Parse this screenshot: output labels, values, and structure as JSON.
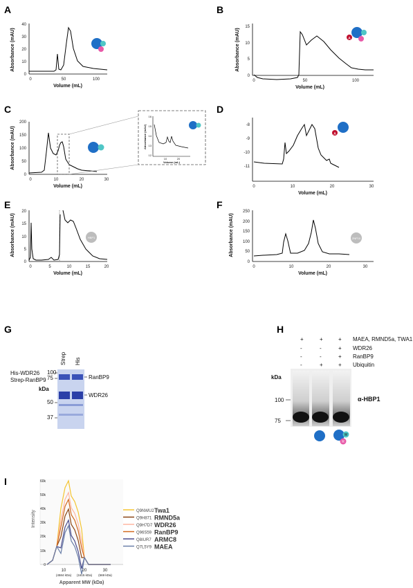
{
  "panels": {
    "A": {
      "letter": "A",
      "xlabel": "Volume (mL)",
      "ylabel": "Absorbance (mAU)",
      "yticks": [
        "0",
        "10",
        "20",
        "30",
        "40"
      ],
      "xticks": [
        "0",
        "50",
        "100"
      ],
      "icons": [
        "Core",
        "W",
        "R"
      ]
    },
    "B": {
      "letter": "B",
      "xlabel": "Volume (mL)",
      "ylabel": "Absorbance (mAU)",
      "yticks": [
        "0",
        "5",
        "10",
        "15"
      ],
      "xticks": [
        "0",
        "50",
        "100"
      ],
      "icons": [
        "A",
        "Core",
        "W",
        "R"
      ]
    },
    "C": {
      "letter": "C",
      "xlabel": "Volume (mL)",
      "ylabel": "Absorbance (mAU)",
      "yticks": [
        "0",
        "50",
        "100",
        "150",
        "200"
      ],
      "xticks": [
        "0",
        "10",
        "20",
        "30"
      ],
      "icons": [
        "Core",
        "W"
      ],
      "inset": {
        "xlabel": "Volume (mL)",
        "ylabel": "Absorbance (mAU)",
        "yticks": [
          "12",
          "13",
          "14",
          "15",
          "16"
        ],
        "xticks": [
          "10",
          "20"
        ]
      }
    },
    "D": {
      "letter": "D",
      "xlabel": "Volume (mL)",
      "ylabel": "",
      "yticks": [
        "-8",
        "-9",
        "-10",
        "-11"
      ],
      "xticks": [
        "0",
        "10",
        "20",
        "30"
      ],
      "icons": [
        "A",
        "Core"
      ]
    },
    "E": {
      "letter": "E",
      "xlabel": "Volume (mL)",
      "ylabel": "Absorbance (mAU)",
      "yticks": [
        "0",
        "5",
        "10",
        "15",
        "20"
      ],
      "xticks": [
        "0",
        "5",
        "10",
        "15",
        "20"
      ],
      "icons": [
        "HBP1"
      ]
    },
    "F": {
      "letter": "F",
      "xlabel": "Volume (mL)",
      "ylabel": "Absorbance (mAU)",
      "yticks": [
        "0",
        "50",
        "100",
        "150",
        "200",
        "250"
      ],
      "xticks": [
        "0",
        "10",
        "20",
        "30"
      ],
      "icons": [
        "ZNF10"
      ]
    },
    "G": {
      "letter": "G",
      "lanes": [
        "Strep",
        "His"
      ],
      "rows": [
        {
          "label": "His-WDR26",
          "marks": [
            "+",
            "+"
          ]
        },
        {
          "label": "Strep-RanBP9",
          "marks": [
            "+",
            "+"
          ]
        }
      ],
      "kda": "kDa",
      "markers": [
        "100",
        "75",
        "50",
        "37"
      ],
      "bands": [
        "RanBP9",
        "WDR26"
      ]
    },
    "H": {
      "letter": "H",
      "rows": [
        {
          "label": "MAEA, RMND5a, TWA1",
          "marks": [
            "+",
            "+",
            "+"
          ]
        },
        {
          "label": "WDR26",
          "marks": [
            "-",
            "-",
            "+"
          ]
        },
        {
          "label": "RanBP9",
          "marks": [
            "-",
            "-",
            "+"
          ]
        },
        {
          "label": "Ubiquitin",
          "marks": [
            "-",
            "+",
            "+"
          ]
        }
      ],
      "kda": "kDa",
      "markers": [
        "100",
        "75"
      ],
      "antibody": "α-HBP1",
      "icons": [
        "Core",
        "Core",
        "W",
        "R"
      ]
    },
    "I": {
      "letter": "I",
      "xlabel": "Apparent MW (kDa)",
      "ylabel": "Intensity",
      "yticks": [
        "0",
        "10k",
        "20k",
        "30k",
        "40k",
        "50k",
        "60k"
      ],
      "xticks": [
        "10",
        "20",
        "30"
      ],
      "xsub": [
        "(4584 kDa)",
        "(1615 kDa)",
        "(569 kDa)"
      ],
      "legend": [
        {
          "id": "Q9NWU2",
          "name": "Twa1",
          "color": "#f4c430"
        },
        {
          "id": "Q9H871",
          "name": "RMND5a",
          "color": "#8b4513"
        },
        {
          "id": "Q9H7D7",
          "name": "WDR26",
          "color": "#ffb6a0"
        },
        {
          "id": "Q96S59",
          "name": "RanBP9",
          "color": "#d2691e"
        },
        {
          "id": "Q8IUR7",
          "name": "ARMC8",
          "color": "#4b4b8c"
        },
        {
          "id": "Q7L5Y9",
          "name": "MAEA",
          "color": "#6a7fa8"
        }
      ]
    }
  },
  "colors": {
    "core": "#1f6fc6",
    "w": "#4fc6c6",
    "r": "#e85aa8",
    "a": "#c0102e",
    "protein": "#bdbdbd"
  }
}
